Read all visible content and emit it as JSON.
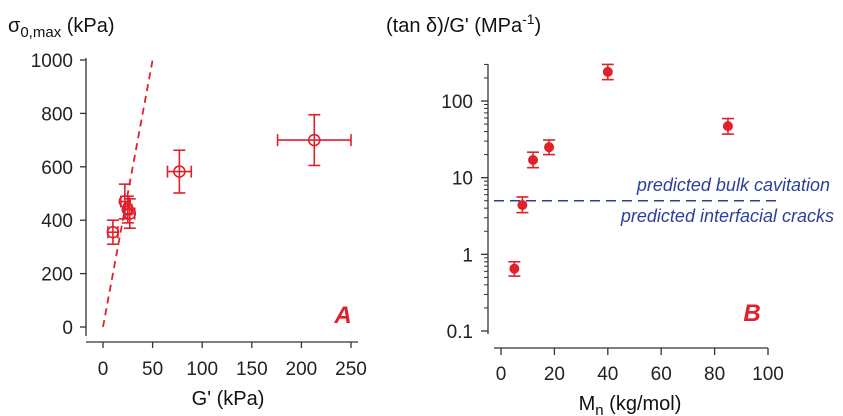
{
  "chart_data": [
    {
      "type": "scatter",
      "panel_label": "A",
      "ylabel_main": "σ",
      "ylabel_sub": "0,max",
      "ylabel_unit": " (kPa)",
      "xlabel": "G' (kPa)",
      "xlim": [
        0,
        250
      ],
      "ylim": [
        0,
        1000
      ],
      "xticks": [
        0,
        50,
        100,
        150,
        200,
        250
      ],
      "yticks": [
        0,
        200,
        400,
        600,
        800,
        1000
      ],
      "marker": "open-circle",
      "color": "#e0202a",
      "points": [
        {
          "x": 10,
          "y": 355,
          "xerr": 5,
          "yerr": 45
        },
        {
          "x": 22,
          "y": 470,
          "xerr": 4,
          "yerr": 65
        },
        {
          "x": 25,
          "y": 440,
          "xerr": 4,
          "yerr": 50
        },
        {
          "x": 27,
          "y": 425,
          "xerr": 5,
          "yerr": 55
        },
        {
          "x": 77,
          "y": 582,
          "xerr": 12,
          "yerr": 80
        },
        {
          "x": 213,
          "y": 700,
          "xerr": 37,
          "yerr": 95
        }
      ],
      "reference_line": {
        "x": [
          0,
          50
        ],
        "y": [
          0,
          1000
        ],
        "style": "dashed"
      }
    },
    {
      "type": "scatter",
      "panel_label": "B",
      "ylabel_pre": "(tan δ)/G' (MPa",
      "ylabel_sup": "-1",
      "ylabel_post": ")",
      "xlabel_main": "M",
      "xlabel_sub": "n",
      "xlabel_unit": " (kg/mol)",
      "xlim": [
        0,
        100
      ],
      "ylim": [
        0.1,
        300
      ],
      "yscale": "log",
      "xticks": [
        0,
        20,
        40,
        60,
        80,
        100
      ],
      "yticks": [
        0.1,
        1,
        10,
        100
      ],
      "ytick_labels": [
        "0.1",
        "1",
        "10",
        "100"
      ],
      "marker": "filled-circle",
      "color": "#e0202a",
      "points": [
        {
          "x": 5,
          "y": 0.65,
          "ylo": 0.52,
          "yhi": 0.8
        },
        {
          "x": 8,
          "y": 4.4,
          "ylo": 3.5,
          "yhi": 5.6
        },
        {
          "x": 12,
          "y": 17,
          "ylo": 13.5,
          "yhi": 21.5
        },
        {
          "x": 18,
          "y": 25,
          "ylo": 20,
          "yhi": 31
        },
        {
          "x": 40,
          "y": 240,
          "ylo": 190,
          "yhi": 300
        },
        {
          "x": 85,
          "y": 47,
          "ylo": 37,
          "yhi": 59
        }
      ],
      "threshold": {
        "y": 5,
        "style": "dashed",
        "color": "#2b3f9e"
      },
      "annotations": [
        "predicted bulk cavitation",
        "predicted interfacial cracks"
      ]
    }
  ]
}
